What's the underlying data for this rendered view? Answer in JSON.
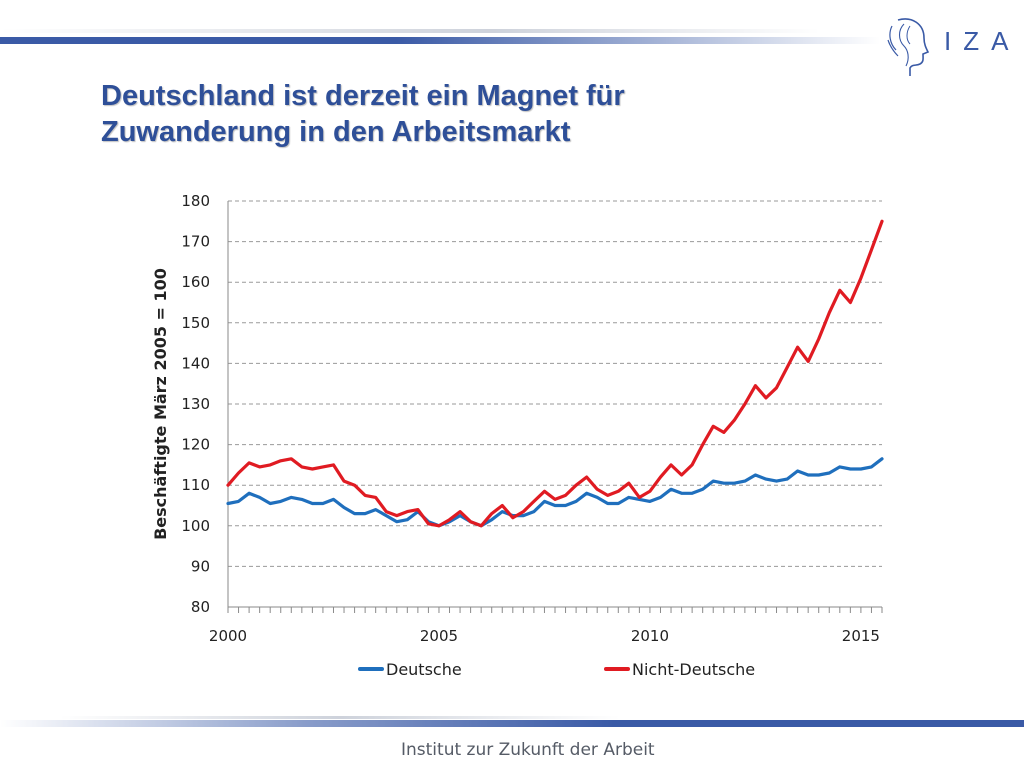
{
  "slide": {
    "title_line1": "Deutschland ist derzeit ein Magnet für",
    "title_line2": "Zuwanderung in den Arbeitsmarkt",
    "footer": "Institut zur Zukunft der Arbeit",
    "logo_text": "IZA"
  },
  "colors": {
    "brand": "#3a5aa6",
    "deutsche": "#1f6fbd",
    "nicht_deutsche": "#e01b22"
  },
  "chart_data": {
    "type": "line",
    "title": "",
    "xlabel": "",
    "ylabel": "Beschäftigte März 2005 = 100",
    "xlim": [
      2000,
      2015.5
    ],
    "ylim": [
      80,
      180
    ],
    "yticks": [
      80,
      90,
      100,
      110,
      120,
      130,
      140,
      150,
      160,
      170,
      180
    ],
    "ytick_labels": [
      "80",
      "90",
      "100",
      "110",
      "120",
      "130",
      "140",
      "150",
      "160",
      "170",
      "180"
    ],
    "xticks": [
      2000,
      2005,
      2010,
      2015
    ],
    "xtick_labels": [
      "2000",
      "2005",
      "2010",
      "2015"
    ],
    "grid": "horizontal dashed",
    "legend": "bottom",
    "series": [
      {
        "name": "Deutsche",
        "x": [
          2000.0,
          2000.25,
          2000.5,
          2000.75,
          2001.0,
          2001.25,
          2001.5,
          2001.75,
          2002.0,
          2002.25,
          2002.5,
          2002.75,
          2003.0,
          2003.25,
          2003.5,
          2003.75,
          2004.0,
          2004.25,
          2004.5,
          2004.75,
          2005.0,
          2005.25,
          2005.5,
          2005.75,
          2006.0,
          2006.25,
          2006.5,
          2006.75,
          2007.0,
          2007.25,
          2007.5,
          2007.75,
          2008.0,
          2008.25,
          2008.5,
          2008.75,
          2009.0,
          2009.25,
          2009.5,
          2009.75,
          2010.0,
          2010.25,
          2010.5,
          2010.75,
          2011.0,
          2011.25,
          2011.5,
          2011.75,
          2012.0,
          2012.25,
          2012.5,
          2012.75,
          2013.0,
          2013.25,
          2013.5,
          2013.75,
          2014.0,
          2014.25,
          2014.5,
          2014.75,
          2015.0,
          2015.25,
          2015.5
        ],
        "values": [
          105.5,
          106.0,
          108.0,
          107.0,
          105.5,
          106.0,
          107.0,
          106.5,
          105.5,
          105.5,
          106.5,
          104.5,
          103.0,
          103.0,
          104.0,
          102.5,
          101.0,
          101.5,
          103.5,
          101.0,
          100.0,
          101.0,
          102.5,
          101.0,
          100.0,
          101.5,
          103.5,
          102.5,
          102.5,
          103.5,
          106.0,
          105.0,
          105.0,
          106.0,
          108.0,
          107.0,
          105.5,
          105.5,
          107.0,
          106.5,
          106.0,
          107.0,
          109.0,
          108.0,
          108.0,
          109.0,
          111.0,
          110.5,
          110.5,
          111.0,
          112.5,
          111.5,
          111.0,
          111.5,
          113.5,
          112.5,
          112.5,
          113.0,
          114.5,
          114.0,
          114.0,
          114.5,
          116.5
        ]
      },
      {
        "name": "Nicht-Deutsche",
        "x": [
          2000.0,
          2000.25,
          2000.5,
          2000.75,
          2001.0,
          2001.25,
          2001.5,
          2001.75,
          2002.0,
          2002.25,
          2002.5,
          2002.75,
          2003.0,
          2003.25,
          2003.5,
          2003.75,
          2004.0,
          2004.25,
          2004.5,
          2004.75,
          2005.0,
          2005.25,
          2005.5,
          2005.75,
          2006.0,
          2006.25,
          2006.5,
          2006.75,
          2007.0,
          2007.25,
          2007.5,
          2007.75,
          2008.0,
          2008.25,
          2008.5,
          2008.75,
          2009.0,
          2009.25,
          2009.5,
          2009.75,
          2010.0,
          2010.25,
          2010.5,
          2010.75,
          2011.0,
          2011.25,
          2011.5,
          2011.75,
          2012.0,
          2012.25,
          2012.5,
          2012.75,
          2013.0,
          2013.25,
          2013.5,
          2013.75,
          2014.0,
          2014.25,
          2014.5,
          2014.75,
          2015.0,
          2015.25,
          2015.5
        ],
        "values": [
          110.0,
          113.0,
          115.5,
          114.5,
          115.0,
          116.0,
          116.5,
          114.5,
          114.0,
          114.5,
          115.0,
          111.0,
          110.0,
          107.5,
          107.0,
          103.5,
          102.5,
          103.5,
          104.0,
          100.5,
          100.0,
          101.5,
          103.5,
          101.0,
          100.0,
          103.0,
          105.0,
          102.0,
          103.5,
          106.0,
          108.5,
          106.5,
          107.5,
          110.0,
          112.0,
          109.0,
          107.5,
          108.5,
          110.5,
          107.0,
          108.5,
          112.0,
          115.0,
          112.5,
          115.0,
          120.0,
          124.5,
          123.0,
          126.0,
          130.0,
          134.5,
          131.5,
          134.0,
          139.0,
          144.0,
          140.5,
          146.0,
          152.5,
          158.0,
          155.0,
          161.0,
          168.0,
          175.0
        ]
      }
    ]
  }
}
